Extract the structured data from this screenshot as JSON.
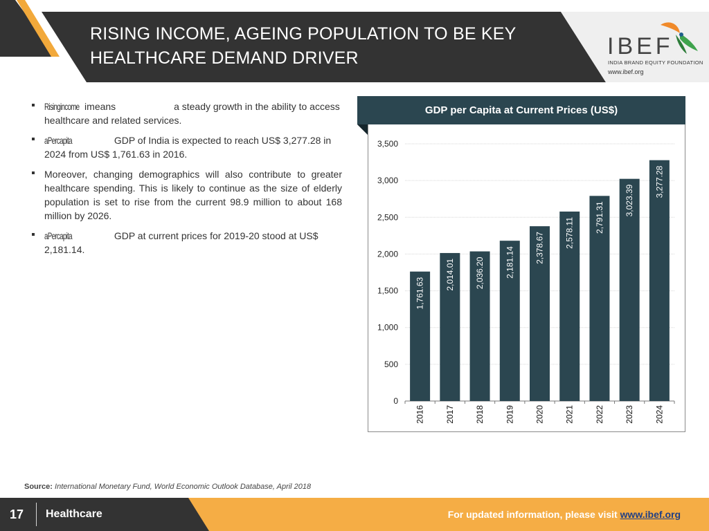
{
  "header": {
    "title_line1": "RISING INCOME, AGEING POPULATION TO BE KEY",
    "title_line2": "HEALTHCARE DEMAND DRIVER",
    "logo_text": "IBEF",
    "logo_subtitle": "INDIA BRAND EQUITY FOUNDATION",
    "logo_url": "www.ibef.org"
  },
  "bullets": [
    {
      "keyword": "Risingincome",
      "pre": " ",
      "mid": "imeans",
      "rest": " a steady growth in the ability to access healthcare and related services."
    },
    {
      "keyword": "aPercapita",
      "rest": " GDP of India is expected to reach US$ 3,277.28 in 2024  from US$ 1,761.63 in 2016."
    },
    {
      "text": "Moreover, changing demographics will also contribute to greater healthcare spending. This is likely to continue as the size of elderly population is set to rise from the current 98.9 million to about 168 million by 2026."
    },
    {
      "keyword": "aPercapita",
      "rest": " GDP at current prices for 2019-20 stood at US$ 2,181.14."
    }
  ],
  "chart_data": {
    "type": "bar",
    "title": "GDP per Capita at Current Prices (US$)",
    "categories": [
      "2016",
      "2017",
      "2018",
      "2019",
      "2020",
      "2021",
      "2022",
      "2023",
      "2024"
    ],
    "values": [
      1761.63,
      2014.01,
      2036.2,
      2181.14,
      2378.67,
      2578.11,
      2791.31,
      3023.39,
      3277.28
    ],
    "value_labels": [
      "1,761.63",
      "2,014.01",
      "2,036.20",
      "2,181.14",
      "2,378.67",
      "2,578.11",
      "2,791.31",
      "3,023.39",
      "3,277.28"
    ],
    "ylim": [
      0,
      3500
    ],
    "yticks": [
      0,
      500,
      1000,
      1500,
      2000,
      2500,
      3000,
      3500
    ],
    "ytick_labels": [
      "0",
      "500",
      "1,000",
      "1,500",
      "2,000",
      "2,500",
      "3,000",
      "3,500"
    ],
    "grid": true,
    "bar_color": "#2b4650"
  },
  "source": {
    "label": "Source:",
    "text": "International Monetary Fund, World Economic Outlook Database, April 2018"
  },
  "footer": {
    "page_number": "17",
    "section": "Healthcare",
    "visit_text": "For updated information, please visit",
    "link": "www.ibef.org"
  },
  "colors": {
    "dark": "#333333",
    "accent": "#f5ad45",
    "chart_bar": "#2b4650"
  }
}
